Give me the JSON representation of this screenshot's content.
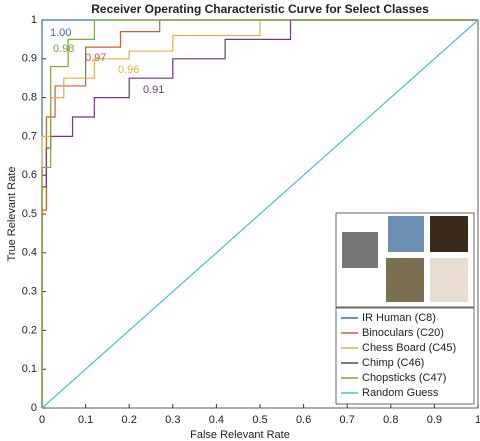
{
  "chart_data": {
    "type": "line",
    "title": "Receiver Operating Characteristic Curve for Select Classes",
    "xlabel": "False Relevant Rate",
    "ylabel": "True Relevant Rate",
    "xlim": [
      0,
      1
    ],
    "ylim": [
      0,
      1
    ],
    "xticks": [
      0,
      0.1,
      0.2,
      0.3,
      0.4,
      0.5,
      0.6,
      0.7,
      0.8,
      0.9,
      1
    ],
    "yticks": [
      0,
      0.1,
      0.2,
      0.3,
      0.4,
      0.5,
      0.6,
      0.7,
      0.8,
      0.9,
      1
    ],
    "grid": false,
    "legend": "southeast",
    "annotations": [
      "1.00",
      "0.98",
      "0.97",
      "0.96",
      "0.91"
    ],
    "series": [
      {
        "name": "IR Human (C8)",
        "color": "#3a6fb0",
        "x": [
          0,
          0,
          1
        ],
        "values": [
          0,
          1,
          1
        ]
      },
      {
        "name": "Binoculars (C20)",
        "color": "#c8603a",
        "x": [
          0,
          0,
          0.01,
          0.01,
          0.03,
          0.03,
          0.1,
          0.1,
          0.18,
          0.18,
          0.27,
          0.27,
          1
        ],
        "values": [
          0,
          0.51,
          0.51,
          0.75,
          0.75,
          0.83,
          0.83,
          0.93,
          0.93,
          0.97,
          0.97,
          1,
          1
        ]
      },
      {
        "name": "Chess Board (C45)",
        "color": "#e0b050",
        "x": [
          0,
          0,
          0.02,
          0.02,
          0.05,
          0.05,
          0.12,
          0.12,
          0.2,
          0.2,
          0.3,
          0.3,
          0.5,
          0.5,
          1
        ],
        "values": [
          0,
          0.7,
          0.7,
          0.8,
          0.8,
          0.85,
          0.85,
          0.9,
          0.9,
          0.92,
          0.92,
          0.96,
          0.96,
          1,
          1
        ]
      },
      {
        "name": "Chimp (C46)",
        "color": "#6b3a78",
        "x": [
          0,
          0,
          0.01,
          0.01,
          0.02,
          0.02,
          0.07,
          0.07,
          0.12,
          0.12,
          0.2,
          0.2,
          0.3,
          0.3,
          0.42,
          0.42,
          0.57,
          0.57,
          1
        ],
        "values": [
          0,
          0.57,
          0.57,
          0.67,
          0.67,
          0.7,
          0.7,
          0.75,
          0.75,
          0.8,
          0.8,
          0.85,
          0.85,
          0.9,
          0.9,
          0.95,
          0.95,
          1,
          1
        ]
      },
      {
        "name": "Chopsticks (C47)",
        "color": "#7aa83a",
        "x": [
          0,
          0,
          0.02,
          0.02,
          0.06,
          0.06,
          0.12,
          0.12,
          1
        ],
        "values": [
          0,
          0.62,
          0.62,
          0.88,
          0.88,
          0.95,
          0.95,
          1,
          1
        ]
      },
      {
        "name": "Random Guess",
        "color": "#4dbcd8",
        "x": [
          0,
          1
        ],
        "values": [
          0,
          1
        ]
      }
    ]
  }
}
